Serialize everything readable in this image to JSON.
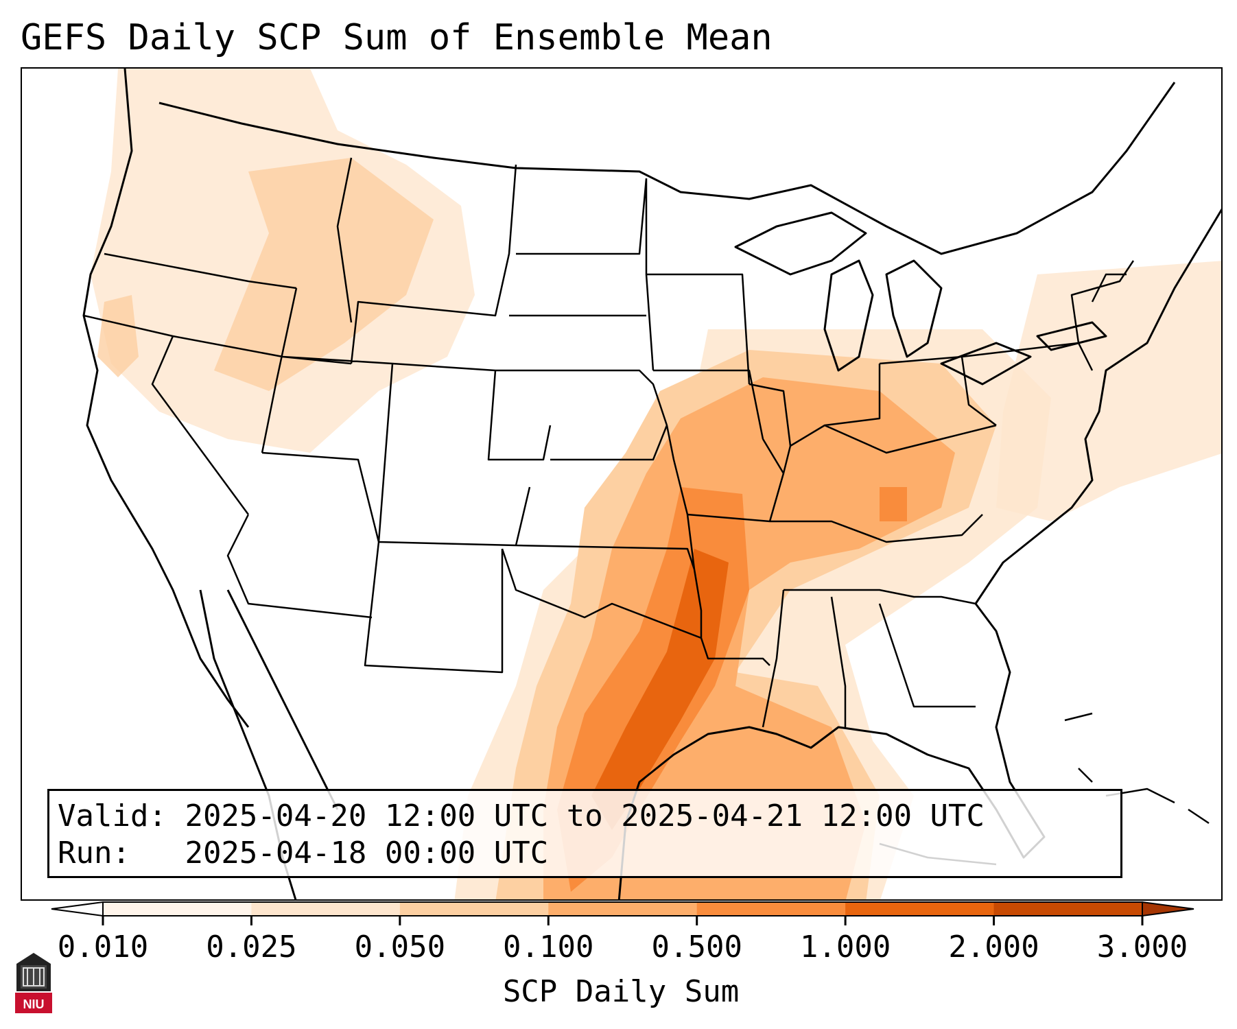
{
  "title": "GEFS Daily SCP Sum of Ensemble Mean",
  "info": {
    "valid_label": "Valid:",
    "valid_value": "2025-04-20 12:00 UTC to 2025-04-21 12:00 UTC",
    "run_label": "Run:",
    "run_value": "2025-04-18 00:00 UTC"
  },
  "colorbar": {
    "title": "SCP Daily Sum",
    "ticks": [
      "0.010",
      "0.025",
      "0.050",
      "0.100",
      "0.500",
      "1.000",
      "2.000",
      "3.000"
    ],
    "colors": [
      "#fff5eb",
      "#fee6ce",
      "#fdd0a2",
      "#fdae6b",
      "#f98c3c",
      "#e8650f",
      "#c84a03"
    ],
    "under_color": "#ffffff",
    "over_color": "#a63603"
  },
  "logo": {
    "text": "NIU",
    "color": "#c8102e"
  },
  "map_features": {
    "land_color": "#ffffff",
    "outline_color": "#000000"
  }
}
